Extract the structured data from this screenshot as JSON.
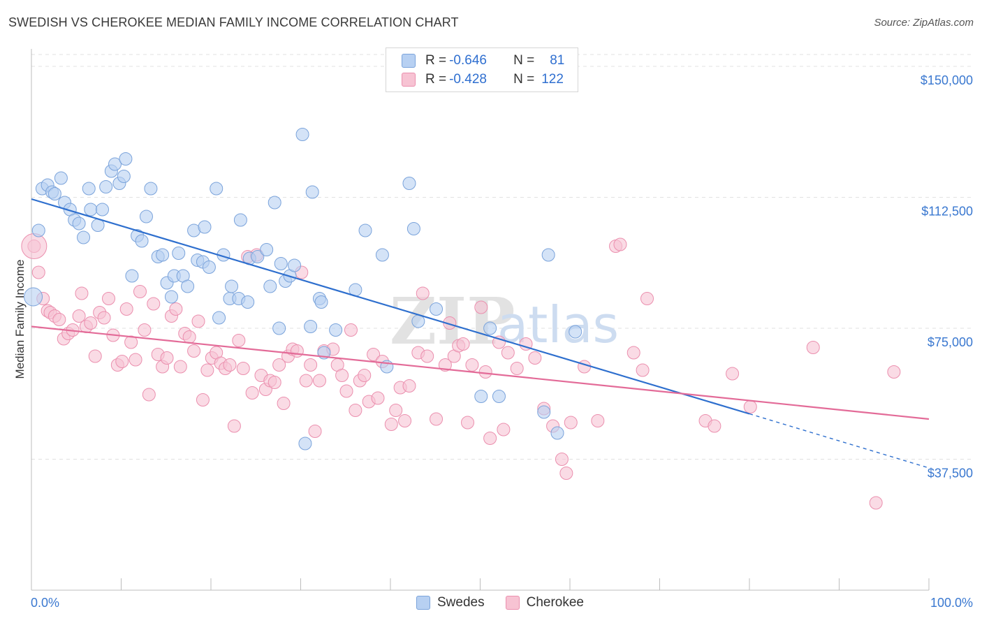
{
  "header": {
    "title": "SWEDISH VS CHEROKEE MEDIAN FAMILY INCOME CORRELATION CHART",
    "source": "Source: ZipAtlas.com"
  },
  "legend": {
    "swedes": {
      "r_label": "R = ",
      "r_value": "-0.646",
      "n_label": "N = ",
      "n_value": "81"
    },
    "cherokee": {
      "r_label": "R = ",
      "r_value": "-0.428",
      "n_label": "N = ",
      "n_value": "122"
    }
  },
  "bottom_legend": {
    "swedes": "Swedes",
    "cherokee": "Cherokee"
  },
  "watermark": {
    "zip": "ZIP",
    "atlas": "atlas"
  },
  "colors": {
    "swedes_fill": "#b7d0f2",
    "swedes_stroke": "#7aa3db",
    "swedes_line": "#2e6fce",
    "cherokee_fill": "#f7c3d3",
    "cherokee_stroke": "#eb8fae",
    "cherokee_line": "#e36b98",
    "tick_label": "#3a78d0"
  },
  "chart_data": {
    "type": "scatter",
    "title": "SWEDISH VS CHEROKEE MEDIAN FAMILY INCOME CORRELATION CHART",
    "xlabel": "",
    "ylabel": "Median Family Income",
    "xlim": [
      0,
      100
    ],
    "ylim": [
      0,
      155000
    ],
    "x_tick_labels": [
      "0.0%",
      "100.0%"
    ],
    "y_ticks": [
      {
        "value": 37500,
        "label": "$37,500"
      },
      {
        "value": 75000,
        "label": "$75,000"
      },
      {
        "value": 112500,
        "label": "$112,500"
      },
      {
        "value": 150000,
        "label": "$150,000"
      }
    ],
    "grid": "horizontal dashed",
    "legend_position": "top-center",
    "series": [
      {
        "name": "Swedes",
        "r": -0.646,
        "n": 81,
        "trend": {
          "x_start": 0,
          "y_start": 112000,
          "x_end": 80,
          "y_end": 50500,
          "dashed_to_x": 100,
          "dashed_to_y": 35000
        },
        "points": [
          [
            0.2,
            84000
          ],
          [
            0.8,
            103000
          ],
          [
            1.2,
            115000
          ],
          [
            1.8,
            116000
          ],
          [
            2.3,
            114000
          ],
          [
            2.6,
            113500
          ],
          [
            3.3,
            118000
          ],
          [
            3.7,
            111000
          ],
          [
            4.3,
            109000
          ],
          [
            4.8,
            106000
          ],
          [
            5.3,
            105000
          ],
          [
            5.8,
            101000
          ],
          [
            6.4,
            115000
          ],
          [
            6.6,
            109000
          ],
          [
            7.4,
            104500
          ],
          [
            7.9,
            109000
          ],
          [
            8.3,
            115500
          ],
          [
            8.9,
            120000
          ],
          [
            9.3,
            122000
          ],
          [
            9.8,
            116500
          ],
          [
            10.3,
            118500
          ],
          [
            10.5,
            123500
          ],
          [
            11.2,
            90000
          ],
          [
            11.8,
            101500
          ],
          [
            12.3,
            100000
          ],
          [
            12.8,
            107000
          ],
          [
            13.3,
            115000
          ],
          [
            14.1,
            95500
          ],
          [
            14.6,
            96000
          ],
          [
            15.1,
            88000
          ],
          [
            15.6,
            84000
          ],
          [
            15.9,
            90000
          ],
          [
            16.4,
            96500
          ],
          [
            16.9,
            90000
          ],
          [
            17.4,
            87000
          ],
          [
            18.1,
            103000
          ],
          [
            18.5,
            94500
          ],
          [
            19.1,
            94000
          ],
          [
            19.3,
            104000
          ],
          [
            19.8,
            92500
          ],
          [
            20.6,
            115000
          ],
          [
            20.9,
            78000
          ],
          [
            21.4,
            96000
          ],
          [
            22.1,
            83500
          ],
          [
            22.3,
            87000
          ],
          [
            23.1,
            83500
          ],
          [
            23.3,
            106000
          ],
          [
            24.1,
            82500
          ],
          [
            24.3,
            95000
          ],
          [
            25.2,
            95500
          ],
          [
            26.2,
            97500
          ],
          [
            26.6,
            87000
          ],
          [
            27.1,
            111000
          ],
          [
            27.6,
            75000
          ],
          [
            27.8,
            93500
          ],
          [
            28.3,
            88500
          ],
          [
            28.8,
            90000
          ],
          [
            29.3,
            93000
          ],
          [
            30.2,
            130500
          ],
          [
            30.5,
            42000
          ],
          [
            31.1,
            75500
          ],
          [
            31.3,
            114000
          ],
          [
            32.1,
            83500
          ],
          [
            32.3,
            82500
          ],
          [
            32.6,
            68000
          ],
          [
            33.9,
            74500
          ],
          [
            36.1,
            86000
          ],
          [
            37.2,
            103000
          ],
          [
            39.1,
            96000
          ],
          [
            39.6,
            64000
          ],
          [
            42.1,
            116500
          ],
          [
            42.6,
            103500
          ],
          [
            43.1,
            77000
          ],
          [
            45.1,
            80500
          ],
          [
            50.1,
            55500
          ],
          [
            51.1,
            75000
          ],
          [
            52.1,
            55500
          ],
          [
            57.1,
            51000
          ],
          [
            57.6,
            96000
          ],
          [
            58.6,
            45000
          ],
          [
            60.6,
            74000
          ]
        ]
      },
      {
        "name": "Cherokee",
        "r": -0.428,
        "n": 122,
        "trend": {
          "x_start": 0,
          "y_start": 75500,
          "x_end": 100,
          "y_end": 49000
        },
        "points": [
          [
            0.3,
            98500
          ],
          [
            0.8,
            91000
          ],
          [
            1.3,
            83500
          ],
          [
            1.8,
            80000
          ],
          [
            2.1,
            79500
          ],
          [
            2.6,
            78500
          ],
          [
            3.1,
            77500
          ],
          [
            3.6,
            72000
          ],
          [
            4.1,
            73500
          ],
          [
            4.6,
            74500
          ],
          [
            5.3,
            78500
          ],
          [
            5.6,
            85000
          ],
          [
            6.1,
            75500
          ],
          [
            6.6,
            76500
          ],
          [
            7.1,
            67000
          ],
          [
            7.6,
            79500
          ],
          [
            8.1,
            78000
          ],
          [
            8.6,
            83500
          ],
          [
            9.1,
            73000
          ],
          [
            9.6,
            64500
          ],
          [
            10.1,
            65500
          ],
          [
            10.6,
            80500
          ],
          [
            11.1,
            71000
          ],
          [
            11.6,
            66000
          ],
          [
            12.1,
            85500
          ],
          [
            12.6,
            74500
          ],
          [
            13.1,
            56000
          ],
          [
            13.6,
            82000
          ],
          [
            14.1,
            67500
          ],
          [
            14.6,
            64000
          ],
          [
            15.1,
            66500
          ],
          [
            15.6,
            78500
          ],
          [
            16.1,
            80500
          ],
          [
            16.6,
            64000
          ],
          [
            17.1,
            73500
          ],
          [
            17.6,
            72500
          ],
          [
            18.1,
            68500
          ],
          [
            18.6,
            77000
          ],
          [
            19.1,
            54500
          ],
          [
            19.6,
            63000
          ],
          [
            20.1,
            66500
          ],
          [
            20.6,
            68000
          ],
          [
            21.1,
            65000
          ],
          [
            21.6,
            63500
          ],
          [
            22.1,
            64500
          ],
          [
            22.6,
            47000
          ],
          [
            23.1,
            71500
          ],
          [
            23.6,
            63500
          ],
          [
            24.1,
            95500
          ],
          [
            24.6,
            56500
          ],
          [
            25.1,
            96000
          ],
          [
            25.6,
            61500
          ],
          [
            26.1,
            57500
          ],
          [
            26.6,
            60000
          ],
          [
            27.1,
            59500
          ],
          [
            27.6,
            64500
          ],
          [
            28.1,
            53500
          ],
          [
            28.6,
            67000
          ],
          [
            29.1,
            69000
          ],
          [
            29.6,
            68500
          ],
          [
            30.1,
            91000
          ],
          [
            30.6,
            60000
          ],
          [
            31.1,
            64500
          ],
          [
            31.6,
            45500
          ],
          [
            32.1,
            60000
          ],
          [
            32.6,
            68500
          ],
          [
            33.6,
            69000
          ],
          [
            34.1,
            64500
          ],
          [
            34.6,
            61500
          ],
          [
            35.1,
            57000
          ],
          [
            35.6,
            74500
          ],
          [
            36.1,
            51500
          ],
          [
            36.6,
            60000
          ],
          [
            37.1,
            61500
          ],
          [
            37.6,
            54000
          ],
          [
            38.1,
            67500
          ],
          [
            38.6,
            55000
          ],
          [
            39.1,
            65500
          ],
          [
            40.1,
            47500
          ],
          [
            40.6,
            51500
          ],
          [
            41.1,
            58000
          ],
          [
            41.6,
            48500
          ],
          [
            42.1,
            58500
          ],
          [
            43.1,
            68000
          ],
          [
            43.6,
            85000
          ],
          [
            44.1,
            67000
          ],
          [
            45.1,
            49000
          ],
          [
            46.1,
            64500
          ],
          [
            46.6,
            76500
          ],
          [
            47.1,
            67000
          ],
          [
            47.6,
            70000
          ],
          [
            48.1,
            70500
          ],
          [
            48.6,
            48000
          ],
          [
            49.1,
            64500
          ],
          [
            50.1,
            81000
          ],
          [
            50.6,
            62500
          ],
          [
            51.1,
            43500
          ],
          [
            52.1,
            71000
          ],
          [
            52.6,
            46000
          ],
          [
            53.1,
            68000
          ],
          [
            54.1,
            63500
          ],
          [
            55.1,
            70500
          ],
          [
            56.1,
            66500
          ],
          [
            57.1,
            52000
          ],
          [
            58.1,
            47000
          ],
          [
            59.1,
            37500
          ],
          [
            59.6,
            33500
          ],
          [
            60.1,
            48000
          ],
          [
            61.6,
            64000
          ],
          [
            63.1,
            48500
          ],
          [
            65.1,
            98500
          ],
          [
            65.6,
            99000
          ],
          [
            67.1,
            68000
          ],
          [
            68.1,
            63000
          ],
          [
            68.6,
            83500
          ],
          [
            75.1,
            48500
          ],
          [
            76.1,
            47000
          ],
          [
            78.1,
            62000
          ],
          [
            80.1,
            52500
          ],
          [
            87.1,
            69500
          ],
          [
            94.1,
            25000
          ],
          [
            96.1,
            62500
          ]
        ]
      }
    ]
  }
}
